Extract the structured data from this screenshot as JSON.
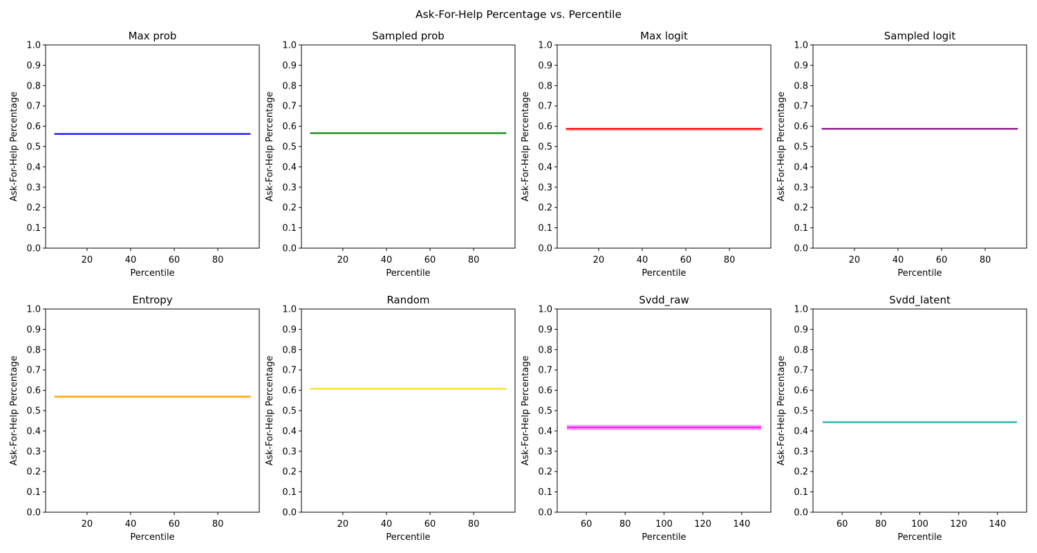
{
  "figure": {
    "suptitle": "Ask-For-Help Percentage vs. Percentile"
  },
  "chart_data": [
    {
      "type": "line",
      "title": "Max prob",
      "xlabel": "Percentile",
      "ylabel": "Ask-For-Help Percentage",
      "xlim": [
        1,
        99
      ],
      "ylim": [
        0.0,
        1.0
      ],
      "xticks": [
        20,
        40,
        60,
        80
      ],
      "yticks": [
        0.0,
        0.1,
        0.2,
        0.3,
        0.4,
        0.5,
        0.6,
        0.7,
        0.8,
        0.9,
        1.0
      ],
      "grid": false,
      "color": "#0000ff",
      "band_color": "#8080ff",
      "series": [
        {
          "x": [
            5,
            95
          ],
          "y": [
            0.562,
            0.562
          ],
          "lower": [
            0.558,
            0.558
          ],
          "upper": [
            0.566,
            0.566
          ]
        }
      ]
    },
    {
      "type": "line",
      "title": "Sampled prob",
      "xlabel": "Percentile",
      "ylabel": "Ask-For-Help Percentage",
      "xlim": [
        1,
        99
      ],
      "ylim": [
        0.0,
        1.0
      ],
      "xticks": [
        20,
        40,
        60,
        80
      ],
      "yticks": [
        0.0,
        0.1,
        0.2,
        0.3,
        0.4,
        0.5,
        0.6,
        0.7,
        0.8,
        0.9,
        1.0
      ],
      "grid": false,
      "color": "#008000",
      "band_color": "#80c080",
      "series": [
        {
          "x": [
            5,
            95
          ],
          "y": [
            0.566,
            0.566
          ],
          "lower": [
            0.562,
            0.562
          ],
          "upper": [
            0.57,
            0.57
          ]
        }
      ]
    },
    {
      "type": "line",
      "title": "Max logit",
      "xlabel": "Percentile",
      "ylabel": "Ask-For-Help Percentage",
      "xlim": [
        1,
        99
      ],
      "ylim": [
        0.0,
        1.0
      ],
      "xticks": [
        20,
        40,
        60,
        80
      ],
      "yticks": [
        0.0,
        0.1,
        0.2,
        0.3,
        0.4,
        0.5,
        0.6,
        0.7,
        0.8,
        0.9,
        1.0
      ],
      "grid": false,
      "color": "#ff0000",
      "band_color": "#ff9090",
      "series": [
        {
          "x": [
            5,
            95
          ],
          "y": [
            0.587,
            0.587
          ],
          "lower": [
            0.578,
            0.578
          ],
          "upper": [
            0.592,
            0.592
          ]
        }
      ]
    },
    {
      "type": "line",
      "title": "Sampled logit",
      "xlabel": "Percentile",
      "ylabel": "Ask-For-Help Percentage",
      "xlim": [
        1,
        99
      ],
      "ylim": [
        0.0,
        1.0
      ],
      "xticks": [
        20,
        40,
        60,
        80
      ],
      "yticks": [
        0.0,
        0.1,
        0.2,
        0.3,
        0.4,
        0.5,
        0.6,
        0.7,
        0.8,
        0.9,
        1.0
      ],
      "grid": false,
      "color": "#800080",
      "band_color": "#c080c0",
      "series": [
        {
          "x": [
            5,
            95
          ],
          "y": [
            0.587,
            0.587
          ],
          "lower": [
            0.583,
            0.583
          ],
          "upper": [
            0.591,
            0.591
          ]
        }
      ]
    },
    {
      "type": "line",
      "title": "Entropy",
      "xlabel": "Percentile",
      "ylabel": "Ask-For-Help Percentage",
      "xlim": [
        1,
        99
      ],
      "ylim": [
        0.0,
        1.0
      ],
      "xticks": [
        20,
        40,
        60,
        80
      ],
      "yticks": [
        0.0,
        0.1,
        0.2,
        0.3,
        0.4,
        0.5,
        0.6,
        0.7,
        0.8,
        0.9,
        1.0
      ],
      "grid": false,
      "color": "#ffa500",
      "band_color": "#ffd280",
      "series": [
        {
          "x": [
            5,
            95
          ],
          "y": [
            0.569,
            0.569
          ],
          "lower": [
            0.562,
            0.562
          ],
          "upper": [
            0.574,
            0.574
          ]
        }
      ]
    },
    {
      "type": "line",
      "title": "Random",
      "xlabel": "Percentile",
      "ylabel": "Ask-For-Help Percentage",
      "xlim": [
        1,
        99
      ],
      "ylim": [
        0.0,
        1.0
      ],
      "xticks": [
        20,
        40,
        60,
        80
      ],
      "yticks": [
        0.0,
        0.1,
        0.2,
        0.3,
        0.4,
        0.5,
        0.6,
        0.7,
        0.8,
        0.9,
        1.0
      ],
      "grid": false,
      "color": "#ffd700",
      "band_color": "#ffeb80",
      "series": [
        {
          "x": [
            5,
            95
          ],
          "y": [
            0.607,
            0.607
          ],
          "lower": [
            0.604,
            0.604
          ],
          "upper": [
            0.61,
            0.61
          ]
        }
      ]
    },
    {
      "type": "line",
      "title": "Svdd_raw",
      "xlabel": "Percentile",
      "ylabel": "Ask-For-Help Percentage",
      "xlim": [
        45,
        155
      ],
      "ylim": [
        0.0,
        1.0
      ],
      "xticks": [
        60,
        80,
        100,
        120,
        140
      ],
      "yticks": [
        0.0,
        0.1,
        0.2,
        0.3,
        0.4,
        0.5,
        0.6,
        0.7,
        0.8,
        0.9,
        1.0
      ],
      "grid": false,
      "color": "#ff00ff",
      "band_color": "#ff80ff",
      "series": [
        {
          "x": [
            50,
            150
          ],
          "y": [
            0.417,
            0.417
          ],
          "lower": [
            0.404,
            0.404
          ],
          "upper": [
            0.43,
            0.43
          ]
        }
      ]
    },
    {
      "type": "line",
      "title": "Svdd_latent",
      "xlabel": "Percentile",
      "ylabel": "Ask-For-Help Percentage",
      "xlim": [
        45,
        155
      ],
      "ylim": [
        0.0,
        1.0
      ],
      "xticks": [
        60,
        80,
        100,
        120,
        140
      ],
      "yticks": [
        0.0,
        0.1,
        0.2,
        0.3,
        0.4,
        0.5,
        0.6,
        0.7,
        0.8,
        0.9,
        1.0
      ],
      "grid": false,
      "color": "#20b2aa",
      "band_color": "#90d8d4",
      "series": [
        {
          "x": [
            50,
            150
          ],
          "y": [
            0.443,
            0.443
          ],
          "lower": [
            0.438,
            0.438
          ],
          "upper": [
            0.448,
            0.448
          ]
        }
      ]
    }
  ]
}
